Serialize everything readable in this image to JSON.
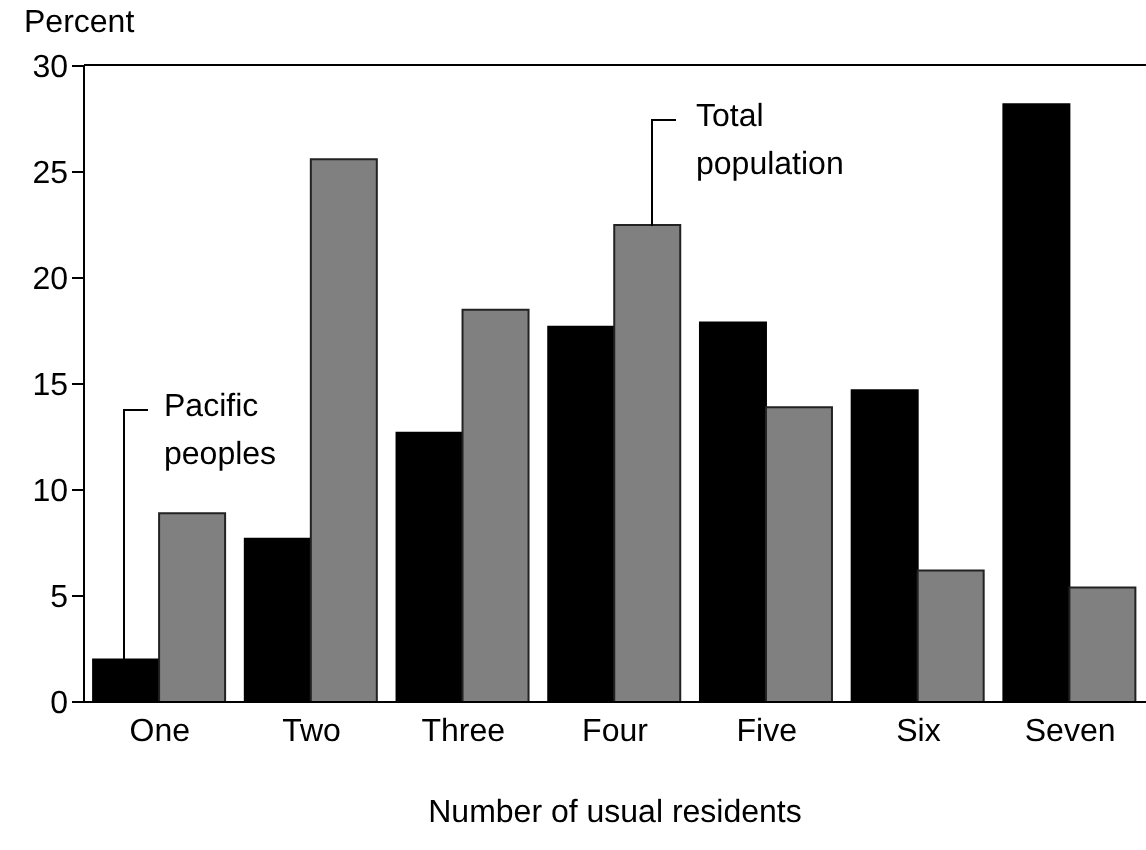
{
  "chart_data": {
    "type": "bar",
    "ylabel": "Percent",
    "xlabel": "Number of usual residents",
    "categories": [
      "One",
      "Two",
      "Three",
      "Four",
      "Five",
      "Six",
      "Seven"
    ],
    "series": [
      {
        "name": "Pacific peoples",
        "color": "#000000",
        "values": [
          2.0,
          7.7,
          12.7,
          17.7,
          17.9,
          14.7,
          28.2
        ]
      },
      {
        "name": "Total population",
        "color": "#808080",
        "values": [
          8.9,
          25.6,
          18.5,
          22.5,
          13.9,
          6.2,
          5.4
        ]
      }
    ],
    "ylim": [
      0,
      30
    ],
    "yticks": [
      0,
      5,
      10,
      15,
      20,
      25,
      30
    ],
    "grid": false,
    "legend": false
  }
}
